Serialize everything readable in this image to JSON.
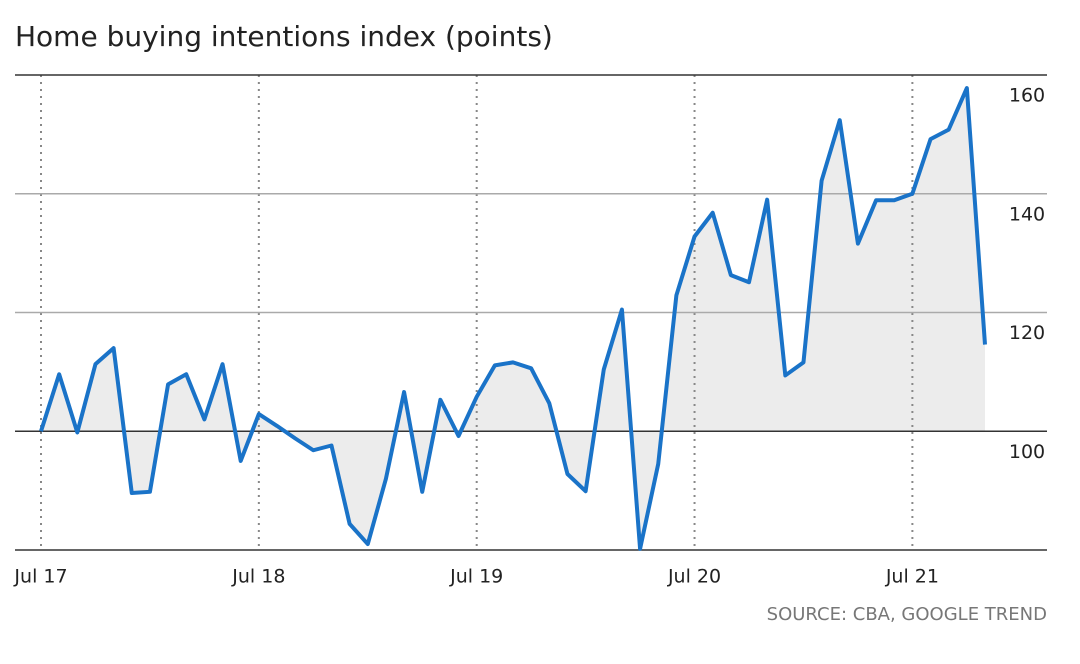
{
  "chart_data": {
    "type": "line",
    "title": "Home buying intentions index (points)",
    "source": "SOURCE: CBA, GOOGLE TREND",
    "categories": [
      "Jul 17",
      null,
      null,
      null,
      null,
      null,
      null,
      null,
      null,
      null,
      null,
      null,
      "Jul 18",
      null,
      null,
      null,
      null,
      null,
      null,
      null,
      null,
      null,
      null,
      null,
      "Jul 19",
      null,
      null,
      null,
      null,
      null,
      null,
      null,
      null,
      null,
      null,
      null,
      "Jul 20",
      null,
      null,
      null,
      null,
      null,
      null,
      null,
      null,
      null,
      null,
      null,
      "Jul 21",
      null,
      null,
      null,
      null
    ],
    "values": [
      100,
      109.6,
      99.8,
      111.3,
      114,
      89.6,
      89.8,
      107.9,
      109.6,
      102,
      111.3,
      95,
      102.9,
      100.9,
      98.8,
      96.8,
      97.6,
      84.4,
      81,
      92,
      106.6,
      89.8,
      105.3,
      99.2,
      105.8,
      111.1,
      111.6,
      110.6,
      104.7,
      92.8,
      89.9,
      110.4,
      120.5,
      80.2,
      94.5,
      122.9,
      132.8,
      136.8,
      126.3,
      125.1,
      139,
      109.4,
      111.6,
      142.2,
      152.4,
      131.6,
      138.9,
      138.9,
      140,
      149.2,
      150.8,
      157.8,
      114.6
    ],
    "color": "#1a73c8",
    "fill_color": "#ececec",
    "ylim": [
      80,
      160
    ],
    "yticks": [
      100,
      120,
      140,
      160
    ],
    "grid": true
  }
}
